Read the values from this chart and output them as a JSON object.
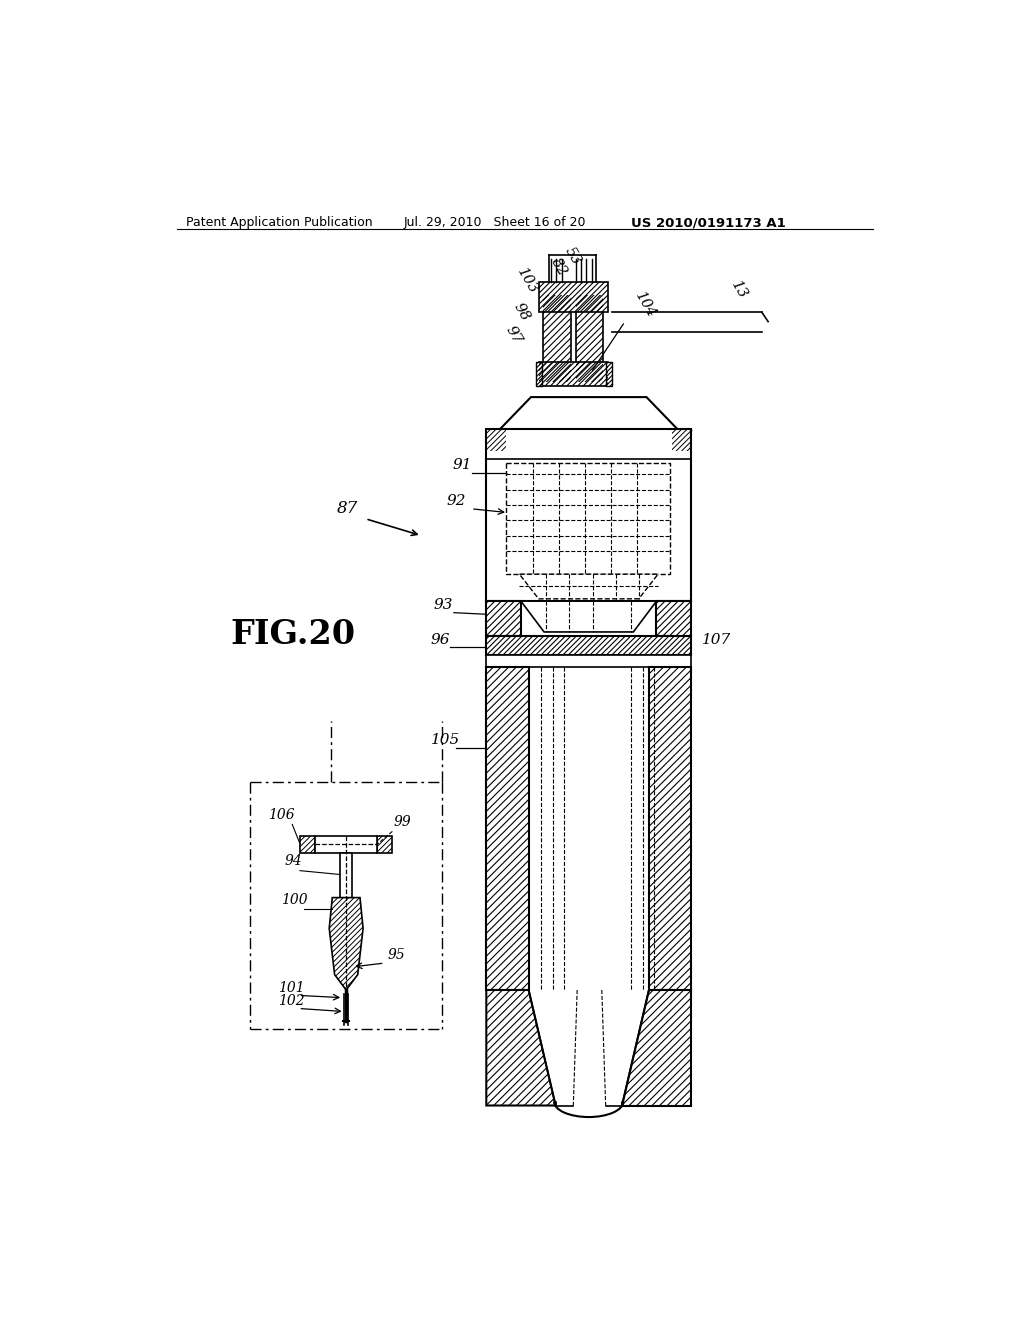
{
  "bg_color": "#ffffff",
  "header_left": "Patent Application Publication",
  "header_mid": "Jul. 29, 2010   Sheet 16 of 20",
  "header_right": "US 2010/0191173 A1"
}
